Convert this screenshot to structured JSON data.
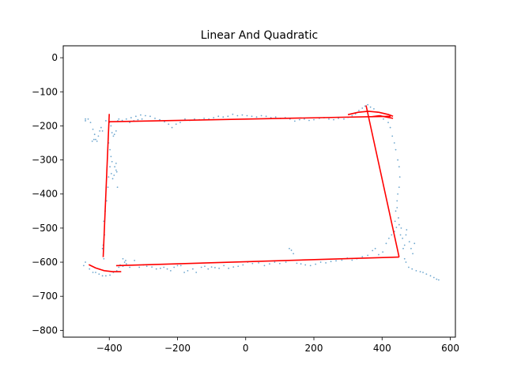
{
  "chart_data": {
    "type": "scatter",
    "title": "Linear And Quadratic",
    "xlabel": "",
    "ylabel": "",
    "xlim": [
      -535,
      615
    ],
    "ylim": [
      -820,
      35
    ],
    "xticks": [
      -400,
      -200,
      0,
      200,
      400,
      600
    ],
    "xtick_labels": [
      "−400",
      "−200",
      "0",
      "200",
      "400",
      "600"
    ],
    "yticks": [
      0,
      -100,
      -200,
      -300,
      -400,
      -500,
      -600,
      -700,
      -800
    ],
    "ytick_labels": [
      "0",
      "−100",
      "−200",
      "−300",
      "−400",
      "−500",
      "−600",
      "−700",
      "−800"
    ],
    "grid": false,
    "colors": {
      "points": "#1f77b4",
      "fit": "#ff0000"
    },
    "series": [
      {
        "kind": "scatter",
        "points": [
          [
            -470,
            -185
          ],
          [
            -462,
            -180
          ],
          [
            -455,
            -190
          ],
          [
            -448,
            -210
          ],
          [
            -443,
            -225
          ],
          [
            -440,
            -240
          ],
          [
            -436,
            -245
          ],
          [
            -432,
            -230
          ],
          [
            -428,
            -215
          ],
          [
            -424,
            -205
          ],
          [
            -420,
            -215
          ],
          [
            -410,
            -185
          ],
          [
            -400,
            -190
          ],
          [
            -395,
            -200
          ],
          [
            -392,
            -220
          ],
          [
            -388,
            -230
          ],
          [
            -385,
            -225
          ],
          [
            -380,
            -215
          ],
          [
            -375,
            -185
          ],
          [
            -372,
            -180
          ],
          [
            -402,
            -250
          ],
          [
            -398,
            -270
          ],
          [
            -395,
            -290
          ],
          [
            -392,
            -305
          ],
          [
            -398,
            -320
          ],
          [
            -394,
            -340
          ],
          [
            -390,
            -355
          ],
          [
            -386,
            -345
          ],
          [
            -384,
            -320
          ],
          [
            -380,
            -310
          ],
          [
            -378,
            -335
          ],
          [
            -376,
            -380
          ],
          [
            -404,
            -380
          ],
          [
            -408,
            -420
          ],
          [
            -412,
            -450
          ],
          [
            -416,
            -480
          ],
          [
            -414,
            -520
          ],
          [
            -418,
            -550
          ],
          [
            -420,
            -560
          ],
          [
            -416,
            -590
          ],
          [
            -475,
            -610
          ],
          [
            -470,
            -600
          ],
          [
            -458,
            -620
          ],
          [
            -448,
            -630
          ],
          [
            -430,
            -635
          ],
          [
            -410,
            -640
          ],
          [
            -398,
            -638
          ],
          [
            -388,
            -630
          ],
          [
            -378,
            -625
          ],
          [
            -372,
            -615
          ],
          [
            -368,
            -608
          ],
          [
            -360,
            -612
          ],
          [
            -355,
            -600
          ],
          [
            -350,
            -605
          ],
          [
            -340,
            -615
          ],
          [
            -326,
            -595
          ],
          [
            -312,
            -615
          ],
          [
            -300,
            -608
          ],
          [
            -290,
            -612
          ],
          [
            -275,
            -614
          ],
          [
            -262,
            -620
          ],
          [
            -250,
            -618
          ],
          [
            -240,
            -615
          ],
          [
            -230,
            -620
          ],
          [
            -220,
            -625
          ],
          [
            -210,
            -615
          ],
          [
            -200,
            -610
          ],
          [
            -190,
            -610
          ],
          [
            -180,
            -630
          ],
          [
            -170,
            -625
          ],
          [
            -155,
            -620
          ],
          [
            -145,
            -630
          ],
          [
            -130,
            -615
          ],
          [
            -120,
            -612
          ],
          [
            -110,
            -620
          ],
          [
            -100,
            -614
          ],
          [
            -90,
            -616
          ],
          [
            -78,
            -618
          ],
          [
            -64,
            -610
          ],
          [
            -50,
            -618
          ],
          [
            -36,
            -614
          ],
          [
            -22,
            -612
          ],
          [
            -8,
            -608
          ],
          [
            6,
            -600
          ],
          [
            20,
            -604
          ],
          [
            38,
            -602
          ],
          [
            55,
            -610
          ],
          [
            70,
            -605
          ],
          [
            85,
            -600
          ],
          [
            100,
            -604
          ],
          [
            118,
            -600
          ],
          [
            128,
            -560
          ],
          [
            134,
            -565
          ],
          [
            140,
            -575
          ],
          [
            150,
            -603
          ],
          [
            162,
            -605
          ],
          [
            175,
            -608
          ],
          [
            190,
            -610
          ],
          [
            205,
            -606
          ],
          [
            220,
            -600
          ],
          [
            235,
            -602
          ],
          [
            250,
            -598
          ],
          [
            265,
            -596
          ],
          [
            282,
            -594
          ],
          [
            298,
            -588
          ],
          [
            312,
            -594
          ],
          [
            326,
            -590
          ],
          [
            342,
            -584
          ],
          [
            358,
            -580
          ],
          [
            372,
            -566
          ],
          [
            380,
            -560
          ],
          [
            390,
            -578
          ],
          [
            402,
            -570
          ],
          [
            412,
            -545
          ],
          [
            420,
            -530
          ],
          [
            428,
            -520
          ],
          [
            436,
            -510
          ],
          [
            442,
            -498
          ],
          [
            450,
            -490
          ],
          [
            456,
            -500
          ],
          [
            462,
            -560
          ],
          [
            466,
            -590
          ],
          [
            470,
            -600
          ],
          [
            478,
            -615
          ],
          [
            488,
            -620
          ],
          [
            500,
            -625
          ],
          [
            512,
            -628
          ],
          [
            520,
            -630
          ],
          [
            530,
            -635
          ],
          [
            542,
            -640
          ],
          [
            552,
            -645
          ],
          [
            560,
            -650
          ],
          [
            566,
            -652
          ],
          [
            438,
            -480
          ],
          [
            440,
            -450
          ],
          [
            444,
            -420
          ],
          [
            446,
            -400
          ],
          [
            450,
            -380
          ],
          [
            452,
            -350
          ],
          [
            450,
            -320
          ],
          [
            446,
            -300
          ],
          [
            440,
            -270
          ],
          [
            436,
            -250
          ],
          [
            430,
            -230
          ],
          [
            424,
            -205
          ],
          [
            418,
            -190
          ],
          [
            404,
            -180
          ],
          [
            396,
            -170
          ],
          [
            386,
            -160
          ],
          [
            376,
            -150
          ],
          [
            366,
            -145
          ],
          [
            358,
            -138
          ],
          [
            350,
            -142
          ],
          [
            342,
            -148
          ],
          [
            332,
            -155
          ],
          [
            322,
            -165
          ],
          [
            312,
            -170
          ],
          [
            300,
            -175
          ],
          [
            288,
            -180
          ],
          [
            272,
            -178
          ],
          [
            258,
            -182
          ],
          [
            244,
            -180
          ],
          [
            230,
            -176
          ],
          [
            216,
            -178
          ],
          [
            200,
            -182
          ],
          [
            186,
            -184
          ],
          [
            172,
            -180
          ],
          [
            158,
            -182
          ],
          [
            144,
            -186
          ],
          [
            130,
            -180
          ],
          [
            116,
            -176
          ],
          [
            102,
            -178
          ],
          [
            88,
            -174
          ],
          [
            74,
            -176
          ],
          [
            60,
            -172
          ],
          [
            46,
            -170
          ],
          [
            32,
            -174
          ],
          [
            18,
            -172
          ],
          [
            4,
            -170
          ],
          [
            -10,
            -168
          ],
          [
            -24,
            -170
          ],
          [
            -38,
            -166
          ],
          [
            -52,
            -172
          ],
          [
            -66,
            -174
          ],
          [
            -80,
            -172
          ],
          [
            -94,
            -176
          ],
          [
            -108,
            -180
          ],
          [
            -122,
            -178
          ],
          [
            -136,
            -182
          ],
          [
            -150,
            -180
          ],
          [
            -164,
            -184
          ],
          [
            -178,
            -180
          ],
          [
            -192,
            -190
          ],
          [
            -204,
            -195
          ],
          [
            -216,
            -205
          ],
          [
            -226,
            -195
          ],
          [
            -238,
            -188
          ],
          [
            -252,
            -182
          ],
          [
            -266,
            -178
          ],
          [
            -280,
            -172
          ],
          [
            -294,
            -170
          ],
          [
            -308,
            -168
          ],
          [
            -322,
            -172
          ],
          [
            -336,
            -176
          ],
          [
            -350,
            -180
          ],
          [
            -362,
            -184
          ],
          [
            -340,
            -190
          ],
          [
            -328,
            -185
          ],
          [
            -316,
            -182
          ],
          [
            -304,
            -180
          ],
          [
            -470,
            -180
          ],
          [
            -450,
            -245
          ],
          [
            -445,
            -240
          ],
          [
            -380,
            -330
          ],
          [
            -402,
            -350
          ],
          [
            -360,
            -590
          ],
          [
            -352,
            -595
          ],
          [
            -440,
            -630
          ],
          [
            -420,
            -640
          ],
          [
            480,
            -540
          ],
          [
            485,
            -560
          ],
          [
            490,
            -575
          ],
          [
            495,
            -545
          ],
          [
            470,
            -520
          ],
          [
            472,
            -505
          ],
          [
            444,
            -440
          ],
          [
            448,
            -470
          ],
          [
            454,
            -520
          ],
          [
            460,
            -530
          ],
          [
            466,
            -550
          ]
        ]
      },
      {
        "kind": "line",
        "points": [
          [
            -400,
            -165
          ],
          [
            -418,
            -585
          ]
        ]
      },
      {
        "kind": "line",
        "points": [
          [
            -400,
            -188
          ],
          [
            425,
            -172
          ]
        ]
      },
      {
        "kind": "line",
        "points": [
          [
            353,
            -140
          ],
          [
            450,
            -585
          ]
        ]
      },
      {
        "kind": "line",
        "points": [
          [
            450,
            -585
          ],
          [
            -380,
            -610
          ]
        ]
      },
      {
        "kind": "line",
        "points": [
          [
            -460,
            -607
          ],
          [
            -440,
            -617
          ],
          [
            -415,
            -625
          ],
          [
            -390,
            -628
          ],
          [
            -365,
            -628
          ]
        ]
      },
      {
        "kind": "line",
        "points": [
          [
            300,
            -167
          ],
          [
            330,
            -160
          ],
          [
            360,
            -157
          ],
          [
            390,
            -160
          ],
          [
            420,
            -167
          ],
          [
            432,
            -172
          ]
        ]
      },
      {
        "kind": "line",
        "points": [
          [
            370,
            -173
          ],
          [
            392,
            -170
          ],
          [
            412,
            -174
          ],
          [
            432,
            -178
          ]
        ]
      }
    ]
  }
}
